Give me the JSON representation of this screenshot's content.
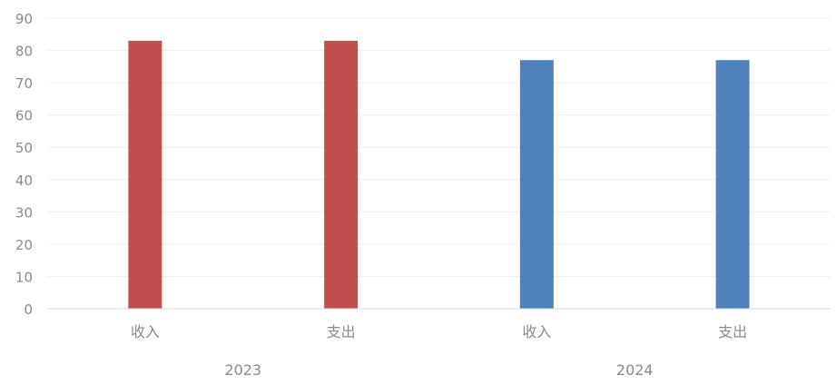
{
  "chart_data": {
    "type": "bar",
    "title": "",
    "xlabel": "",
    "ylabel": "",
    "ylim": [
      0,
      90
    ],
    "yticks": [
      0,
      10,
      20,
      30,
      40,
      50,
      60,
      70,
      80,
      90
    ],
    "grid": true,
    "legend": "none",
    "groups": [
      {
        "label": "2023",
        "color": "#c0504d",
        "categories": [
          "收入",
          "支出"
        ],
        "values": [
          83,
          83
        ]
      },
      {
        "label": "2024",
        "color": "#4f81bd",
        "categories": [
          "收入",
          "支出"
        ],
        "values": [
          77,
          77
        ]
      }
    ]
  },
  "colors": {
    "axis_text": "#8a8a8a",
    "grid": "#f0f0f0",
    "axis_line": "#d9d9d9"
  }
}
